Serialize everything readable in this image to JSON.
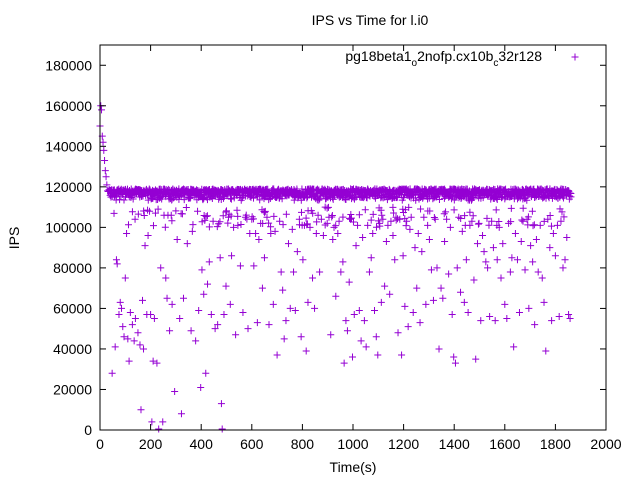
{
  "chart_data": {
    "type": "scatter",
    "title": "IPS vs Time for l.i0",
    "xlabel": "Time(s)",
    "ylabel": "IPS",
    "xlim": [
      0,
      2000
    ],
    "ylim": [
      0,
      190000
    ],
    "xticks": [
      0,
      200,
      400,
      600,
      800,
      1000,
      1200,
      1400,
      1600,
      1800,
      2000
    ],
    "yticks": [
      0,
      20000,
      40000,
      60000,
      80000,
      100000,
      120000,
      140000,
      160000,
      180000
    ],
    "grid": false,
    "legend_position": "top-right",
    "marker": "+",
    "series": [
      {
        "name": "pg18beta1_o2nofp.cx10b_c32r128",
        "legend_parts": {
          "a": "pg18beta1",
          "b": "o",
          "c": "2nofp.cx10b",
          "d": "c",
          "e": "32r128"
        },
        "color": "#9400d3",
        "trend": {
          "initial": [
            [
              0,
              150000
            ],
            [
              3,
              160000
            ],
            [
              6,
              158000
            ],
            [
              9,
              145000
            ],
            [
              12,
              142000
            ],
            [
              15,
              138000
            ],
            [
              18,
              133000
            ],
            [
              21,
              128000
            ],
            [
              24,
              125000
            ],
            [
              27,
              121000
            ],
            [
              30,
              118000
            ]
          ],
          "band_min": 110000,
          "band_max": 119000,
          "x_end": 1860
        },
        "points": [
          [
            48,
            28000
          ],
          [
            60,
            41000
          ],
          [
            65,
            84000
          ],
          [
            68,
            82000
          ],
          [
            75,
            57000
          ],
          [
            80,
            63000
          ],
          [
            85,
            60000
          ],
          [
            90,
            51000
          ],
          [
            95,
            46000
          ],
          [
            100,
            75000
          ],
          [
            105,
            97000
          ],
          [
            110,
            45000
          ],
          [
            115,
            34000
          ],
          [
            120,
            58000
          ],
          [
            128,
            52000
          ],
          [
            135,
            44000
          ],
          [
            140,
            55000
          ],
          [
            150,
            48000
          ],
          [
            158,
            42000
          ],
          [
            162,
            10000
          ],
          [
            168,
            64000
          ],
          [
            172,
            40000
          ],
          [
            178,
            91000
          ],
          [
            185,
            57000
          ],
          [
            190,
            96000
          ],
          [
            200,
            57000
          ],
          [
            205,
            4000
          ],
          [
            210,
            34000
          ],
          [
            215,
            55000
          ],
          [
            225,
            33000
          ],
          [
            232,
            500
          ],
          [
            240,
            80000
          ],
          [
            248,
            4000
          ],
          [
            260,
            75000
          ],
          [
            265,
            65000
          ],
          [
            275,
            49000
          ],
          [
            285,
            62000
          ],
          [
            295,
            19000
          ],
          [
            305,
            94000
          ],
          [
            315,
            55000
          ],
          [
            322,
            8000
          ],
          [
            330,
            65000
          ],
          [
            345,
            92000
          ],
          [
            360,
            49000
          ],
          [
            365,
            98000
          ],
          [
            378,
            44000
          ],
          [
            390,
            59000
          ],
          [
            398,
            21000
          ],
          [
            403,
            79000
          ],
          [
            410,
            67000
          ],
          [
            418,
            28000
          ],
          [
            425,
            72000
          ],
          [
            432,
            83000
          ],
          [
            440,
            57000
          ],
          [
            447,
            103000
          ],
          [
            455,
            50000
          ],
          [
            465,
            52000
          ],
          [
            475,
            85000
          ],
          [
            480,
            13000
          ],
          [
            483,
            500
          ],
          [
            490,
            57000
          ],
          [
            498,
            71000
          ],
          [
            508,
            105000
          ],
          [
            515,
            62000
          ],
          [
            520,
            86000
          ],
          [
            528,
            100000
          ],
          [
            536,
            47000
          ],
          [
            545,
            101000
          ],
          [
            555,
            81000
          ],
          [
            565,
            58000
          ],
          [
            575,
            105000
          ],
          [
            585,
            50000
          ],
          [
            592,
            97000
          ],
          [
            600,
            104000
          ],
          [
            608,
            81000
          ],
          [
            615,
            97000
          ],
          [
            622,
            53000
          ],
          [
            628,
            94000
          ],
          [
            635,
            102000
          ],
          [
            642,
            70000
          ],
          [
            650,
            85000
          ],
          [
            660,
            105000
          ],
          [
            668,
            52000
          ],
          [
            675,
            97000
          ],
          [
            685,
            62000
          ],
          [
            692,
            98000
          ],
          [
            700,
            37000
          ],
          [
            710,
            103000
          ],
          [
            716,
            78000
          ],
          [
            722,
            69000
          ],
          [
            728,
            45000
          ],
          [
            735,
            54000
          ],
          [
            745,
            92000
          ],
          [
            752,
            60000
          ],
          [
            760,
            99000
          ],
          [
            765,
            78000
          ],
          [
            772,
            59000
          ],
          [
            780,
            88000
          ],
          [
            788,
            104000
          ],
          [
            795,
            46000
          ],
          [
            802,
            84000
          ],
          [
            808,
            101000
          ],
          [
            815,
            39000
          ],
          [
            822,
            63000
          ],
          [
            830,
            100000
          ],
          [
            840,
            75000
          ],
          [
            848,
            60000
          ],
          [
            855,
            97000
          ],
          [
            862,
            106000
          ],
          [
            868,
            78000
          ],
          [
            875,
            104000
          ],
          [
            883,
            96000
          ],
          [
            890,
            110000
          ],
          [
            898,
            102000
          ],
          [
            905,
            105000
          ],
          [
            912,
            47000
          ],
          [
            920,
            94000
          ],
          [
            925,
            100000
          ],
          [
            932,
            66000
          ],
          [
            940,
            97000
          ],
          [
            945,
            103000
          ],
          [
            952,
            78000
          ],
          [
            960,
            83000
          ],
          [
            965,
            33000
          ],
          [
            972,
            54000
          ],
          [
            978,
            49000
          ],
          [
            985,
            73000
          ],
          [
            990,
            104000
          ],
          [
            998,
            36000
          ],
          [
            1005,
            57000
          ],
          [
            1012,
            91000
          ],
          [
            1018,
            101000
          ],
          [
            1025,
            59000
          ],
          [
            1032,
            44000
          ],
          [
            1038,
            95000
          ],
          [
            1045,
            54000
          ],
          [
            1052,
            41000
          ],
          [
            1058,
            101000
          ],
          [
            1065,
            78000
          ],
          [
            1072,
            85000
          ],
          [
            1078,
            97000
          ],
          [
            1085,
            59000
          ],
          [
            1092,
            46000
          ],
          [
            1098,
            37000
          ],
          [
            1105,
            102000
          ],
          [
            1112,
            63000
          ],
          [
            1118,
            104000
          ],
          [
            1125,
            71000
          ],
          [
            1132,
            93000
          ],
          [
            1138,
            101000
          ],
          [
            1145,
            67000
          ],
          [
            1150,
            103000
          ],
          [
            1158,
            96000
          ],
          [
            1165,
            84000
          ],
          [
            1170,
            105000
          ],
          [
            1178,
            48000
          ],
          [
            1185,
            104000
          ],
          [
            1192,
            37000
          ],
          [
            1198,
            86000
          ],
          [
            1205,
            61000
          ],
          [
            1212,
            103000
          ],
          [
            1218,
            51000
          ],
          [
            1225,
            99000
          ],
          [
            1230,
            105000
          ],
          [
            1238,
            58000
          ],
          [
            1245,
            90000
          ],
          [
            1252,
            70000
          ],
          [
            1258,
            97000
          ],
          [
            1265,
            53000
          ],
          [
            1272,
            88000
          ],
          [
            1280,
            105000
          ],
          [
            1288,
            62000
          ],
          [
            1295,
            101000
          ],
          [
            1302,
            94000
          ],
          [
            1310,
            79000
          ],
          [
            1318,
            64000
          ],
          [
            1325,
            104000
          ],
          [
            1332,
            80000
          ],
          [
            1340,
            40000
          ],
          [
            1348,
            70000
          ],
          [
            1355,
            65000
          ],
          [
            1362,
            93000
          ],
          [
            1370,
            104000
          ],
          [
            1378,
            77000
          ],
          [
            1385,
            100000
          ],
          [
            1392,
            57000
          ],
          [
            1398,
            36000
          ],
          [
            1405,
            33000
          ],
          [
            1412,
            80000
          ],
          [
            1418,
            105000
          ],
          [
            1425,
            68000
          ],
          [
            1432,
            98000
          ],
          [
            1440,
            63000
          ],
          [
            1448,
            84000
          ],
          [
            1455,
            58000
          ],
          [
            1462,
            101000
          ],
          [
            1470,
            103000
          ],
          [
            1478,
            74000
          ],
          [
            1485,
            35000
          ],
          [
            1492,
            92000
          ],
          [
            1498,
            102000
          ],
          [
            1505,
            54000
          ],
          [
            1512,
            96000
          ],
          [
            1518,
            88000
          ],
          [
            1525,
            83000
          ],
          [
            1532,
            80000
          ],
          [
            1540,
            56000
          ],
          [
            1548,
            103000
          ],
          [
            1555,
            90000
          ],
          [
            1562,
            54000
          ],
          [
            1570,
            84000
          ],
          [
            1578,
            100000
          ],
          [
            1585,
            75000
          ],
          [
            1592,
            92000
          ],
          [
            1600,
            62000
          ],
          [
            1608,
            55000
          ],
          [
            1615,
            102000
          ],
          [
            1622,
            78000
          ],
          [
            1628,
            85000
          ],
          [
            1635,
            41000
          ],
          [
            1642,
            97000
          ],
          [
            1650,
            84000
          ],
          [
            1658,
            58000
          ],
          [
            1665,
            93000
          ],
          [
            1672,
            103000
          ],
          [
            1680,
            79000
          ],
          [
            1688,
            104000
          ],
          [
            1695,
            60000
          ],
          [
            1702,
            91000
          ],
          [
            1710,
            83000
          ],
          [
            1718,
            52000
          ],
          [
            1725,
            94000
          ],
          [
            1732,
            78000
          ],
          [
            1740,
            101000
          ],
          [
            1748,
            75000
          ],
          [
            1755,
            63000
          ],
          [
            1762,
            39000
          ],
          [
            1770,
            104000
          ],
          [
            1778,
            90000
          ],
          [
            1785,
            54000
          ],
          [
            1792,
            97000
          ],
          [
            1800,
            86000
          ],
          [
            1808,
            101000
          ],
          [
            1815,
            56000
          ],
          [
            1822,
            103000
          ],
          [
            1830,
            80000
          ],
          [
            1838,
            84000
          ],
          [
            1845,
            95000
          ],
          [
            1852,
            57000
          ],
          [
            1858,
            55000
          ]
        ]
      }
    ]
  }
}
